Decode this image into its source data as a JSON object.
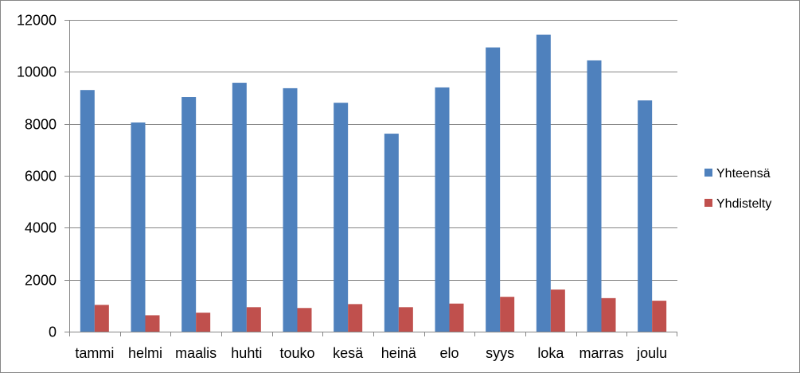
{
  "chart_data": {
    "type": "bar",
    "title": "",
    "xlabel": "",
    "ylabel": "",
    "categories": [
      "tammi",
      "helmi",
      "maalis",
      "huhti",
      "touko",
      "kesä",
      "heinä",
      "elo",
      "syys",
      "loka",
      "marras",
      "joulu"
    ],
    "series": [
      {
        "name": "Yhteensä",
        "color": "#4F81BD",
        "values": [
          9300,
          8050,
          9030,
          9580,
          9370,
          8810,
          7620,
          9400,
          10940,
          11430,
          10440,
          8900
        ]
      },
      {
        "name": "Yhdistelty",
        "color": "#C0504D",
        "values": [
          1030,
          630,
          730,
          940,
          910,
          1060,
          940,
          1080,
          1340,
          1620,
          1290,
          1190
        ]
      }
    ],
    "ylim": [
      0,
      12000
    ],
    "yticks": [
      0,
      2000,
      4000,
      6000,
      8000,
      10000,
      12000
    ],
    "grid": true,
    "legend_position": "right"
  }
}
